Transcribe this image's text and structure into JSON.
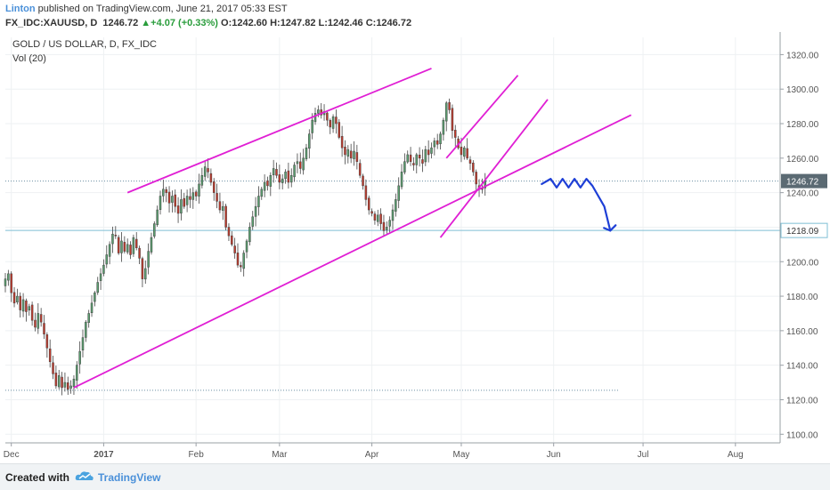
{
  "header": {
    "author": "Linton",
    "published": " published on TradingView.com, June 21, 2017 05:33 EST",
    "symbol": "FX_IDC:XAUUSD, D",
    "last_price": "1246.72",
    "change_arrow": "▲",
    "change": "+4.07 (+0.33%)",
    "ohlc": "O:1242.60 H:1247.82 L:1242.46 C:1246.72"
  },
  "footer": {
    "created_with": "Created with",
    "brand": "TradingView"
  },
  "colors": {
    "bull": "#5a9e6f",
    "bear": "#c0392b",
    "trendline": "#e01fd4",
    "forecast": "#1e3fd6",
    "axis_text": "#555555",
    "hline": "#7fbfd4"
  },
  "chart_data": {
    "type": "candlestick",
    "title": "GOLD / US DOLLAR, D, FX_IDC",
    "subtitle": "Vol (20)",
    "ylim": [
      1095,
      1330
    ],
    "y_ticks": [
      1100,
      1120,
      1140,
      1160,
      1180,
      1200,
      1220,
      1240,
      1260,
      1280,
      1300,
      1320
    ],
    "y_tick_labels": [
      "1100.00",
      "1120.00",
      "1140.00",
      "1160.00",
      "1180.00",
      "1200.00",
      "1220.00",
      "1240.00",
      "1260.00",
      "1280.00",
      "1300.00",
      "1320.00"
    ],
    "x_ticks": [
      "Dec",
      "2017",
      "Feb",
      "Mar",
      "Apr",
      "May",
      "Jun",
      "Jul",
      "Aug"
    ],
    "x_tick_days": [
      2,
      33,
      64,
      92,
      123,
      153,
      184,
      214,
      245
    ],
    "x_range_days": [
      0,
      260
    ],
    "current_price": 1246.72,
    "current_price_label": "1246.72",
    "price_lines": [
      {
        "value": 1246.72,
        "style": "dotted",
        "full_width": true
      },
      {
        "value": 1218.09,
        "style": "solid",
        "full_width": true,
        "label": "1218.09"
      },
      {
        "value": 1125.5,
        "style": "dotted",
        "end_day": 206
      }
    ],
    "closes": [
      1190,
      1193,
      1182,
      1176,
      1180,
      1172,
      1178,
      1171,
      1174,
      1166,
      1162,
      1170,
      1165,
      1158,
      1150,
      1142,
      1135,
      1128,
      1134,
      1127,
      1130,
      1126,
      1128,
      1132,
      1140,
      1148,
      1156,
      1165,
      1170,
      1176,
      1182,
      1188,
      1193,
      1198,
      1204,
      1210,
      1216,
      1215,
      1205,
      1212,
      1206,
      1210,
      1204,
      1214,
      1208,
      1202,
      1190,
      1196,
      1206,
      1214,
      1222,
      1230,
      1238,
      1242,
      1240,
      1234,
      1238,
      1232,
      1228,
      1236,
      1232,
      1238,
      1236,
      1240,
      1238,
      1245,
      1250,
      1255,
      1252,
      1246,
      1240,
      1235,
      1230,
      1232,
      1220,
      1215,
      1210,
      1205,
      1198,
      1197,
      1205,
      1212,
      1220,
      1226,
      1232,
      1238,
      1242,
      1246,
      1244,
      1250,
      1254,
      1250,
      1246,
      1248,
      1252,
      1246,
      1250,
      1256,
      1258,
      1254,
      1260,
      1266,
      1274,
      1282,
      1286,
      1288,
      1285,
      1287,
      1282,
      1278,
      1284,
      1280,
      1272,
      1266,
      1262,
      1265,
      1260,
      1264,
      1258,
      1250,
      1244,
      1236,
      1230,
      1228,
      1224,
      1227,
      1222,
      1218,
      1220,
      1224,
      1230,
      1236,
      1244,
      1252,
      1258,
      1262,
      1258,
      1256,
      1262,
      1260,
      1257,
      1265,
      1262,
      1266,
      1270,
      1268,
      1274,
      1282,
      1292,
      1288,
      1276,
      1272,
      1266,
      1262,
      1266,
      1260,
      1257,
      1252,
      1245,
      1242,
      1242,
      1247
    ],
    "annotations": [
      {
        "type": "trendline",
        "name": "channel-upper",
        "from": [
          41,
          1240
        ],
        "to": [
          143,
          1312
        ]
      },
      {
        "type": "trendline",
        "name": "channel-lower",
        "from": [
          23,
          1127
        ],
        "to": [
          210,
          1285
        ]
      },
      {
        "type": "trendline",
        "name": "wedge-upper",
        "from": [
          148,
          1260
        ],
        "to": [
          172,
          1308
        ]
      },
      {
        "type": "trendline",
        "name": "wedge-lower",
        "from": [
          146,
          1214
        ],
        "to": [
          182,
          1294
        ]
      },
      {
        "type": "forecast-path",
        "name": "forecast-arrow",
        "points": [
          [
            180,
            1245
          ],
          [
            183,
            1248
          ],
          [
            185,
            1243
          ],
          [
            187,
            1248
          ],
          [
            189,
            1243
          ],
          [
            191,
            1248
          ],
          [
            193,
            1243
          ],
          [
            195,
            1248
          ],
          [
            197,
            1244
          ],
          [
            201,
            1232
          ],
          [
            203,
            1218
          ]
        ]
      }
    ]
  }
}
